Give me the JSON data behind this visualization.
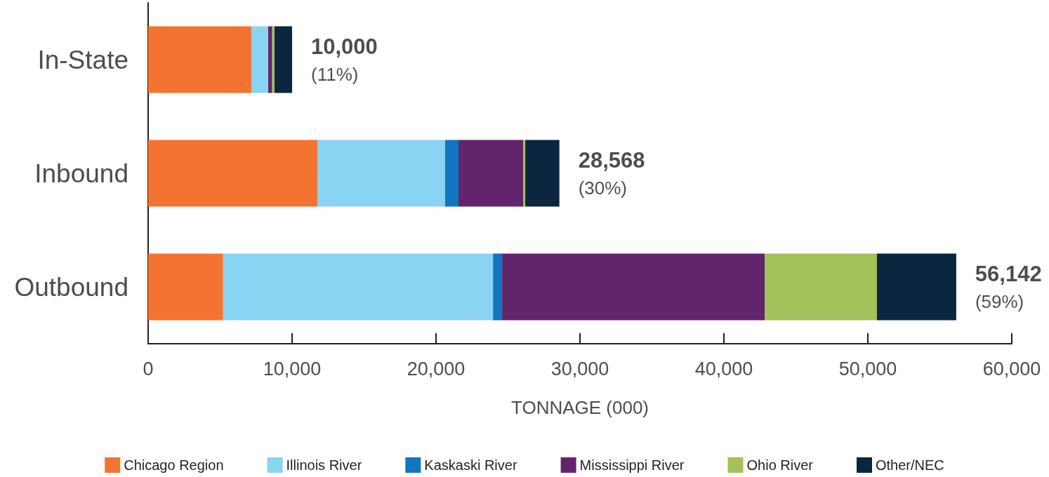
{
  "chart_data": {
    "type": "bar",
    "orientation": "horizontal",
    "stacked": true,
    "categories": [
      "In-State",
      "Inbound",
      "Outbound"
    ],
    "series": [
      {
        "name": "Chicago Region",
        "color": "#f37432",
        "values": [
          7170,
          11760,
          5210
        ]
      },
      {
        "name": "Illinois River",
        "color": "#89d3f3",
        "values": [
          1170,
          8870,
          18750
        ]
      },
      {
        "name": "Kaskaski River",
        "color": "#1076bf",
        "values": [
          null,
          930,
          630
        ]
      },
      {
        "name": "Mississippi River",
        "color": "#62256c",
        "values": [
          280,
          4490,
          18240
        ]
      },
      {
        "name": "Ohio River",
        "color": "#a3c159",
        "values": [
          160,
          150,
          7800
        ]
      },
      {
        "name": "Other/NEC",
        "color": "#0b263f",
        "values": [
          1220,
          2370,
          5510
        ]
      }
    ],
    "totals": [
      "10,000",
      "28,568",
      "56,142"
    ],
    "annotations": [
      {
        "text": "(11%)",
        "x": 10000,
        "y": "In-State"
      },
      {
        "text": "(30%)",
        "x": 28568,
        "y": "Inbound"
      },
      {
        "text": "(59%)",
        "x": 56142,
        "y": "Outbound"
      }
    ],
    "xlabel": "TONNAGE (000)",
    "xlim": [
      0,
      60000
    ],
    "xticks": [
      0,
      {
        "value": 10000,
        "label": "10,000"
      },
      {
        "value": 20000,
        "label": "20,000"
      },
      {
        "value": 30000,
        "label": "30,000"
      },
      {
        "value": 40000,
        "label": "40,000"
      },
      {
        "value": 50000,
        "label": "50,000"
      },
      {
        "value": 60000,
        "label": "60,000"
      }
    ],
    "grid": false,
    "legend": "bottom"
  }
}
